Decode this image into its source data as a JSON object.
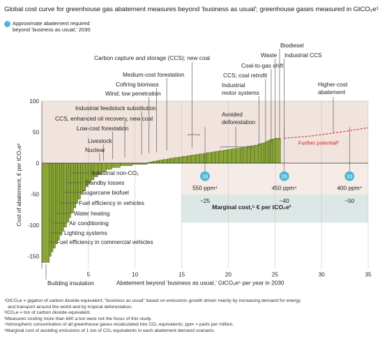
{
  "title": "Global cost curve for greenhouse gas abatement measures beyond ‘business as usual’; greenhouse gases measured in GtCO₂e¹",
  "legend": {
    "marker_label_1": "Approximate abatement required",
    "marker_label_2": "beyond ‘business as usual,’ 2030",
    "marker_color": "#4fb6d6"
  },
  "colors": {
    "bar_fill": "#8aa638",
    "bar_stroke": "#3f4f13",
    "dashed_curve": "#d01f1f",
    "upper_band": "#f1e3dd",
    "mid_band": "#dde7e6",
    "marker": "#4fb6d6"
  },
  "chart_data": {
    "type": "bar",
    "subtype": "marginal-cost-curve",
    "xlabel": "Abatement beyond ‘business as usual,’ GtCO₂e⁵ per year in 2030",
    "ylabel": "Cost of abatement, € per tCO₂e²",
    "xlim": [
      0,
      35
    ],
    "ylim": [
      -170,
      100
    ],
    "x_ticks": [
      0,
      5,
      10,
      15,
      20,
      25,
      30,
      35
    ],
    "y_ticks": [
      -150,
      -100,
      -50,
      0,
      50,
      100
    ],
    "bars": [
      {
        "width": 0.8,
        "cost": -160
      },
      {
        "width": 0.2,
        "cost": -150
      },
      {
        "width": 0.2,
        "cost": -143
      },
      {
        "width": 0.25,
        "cost": -137
      },
      {
        "width": 0.2,
        "cost": -130
      },
      {
        "width": 0.25,
        "cost": -123
      },
      {
        "width": 0.25,
        "cost": -116
      },
      {
        "width": 0.2,
        "cost": -110
      },
      {
        "width": 0.3,
        "cost": -103
      },
      {
        "width": 0.25,
        "cost": -95
      },
      {
        "width": 0.2,
        "cost": -88
      },
      {
        "width": 0.3,
        "cost": -80
      },
      {
        "width": 0.25,
        "cost": -72
      },
      {
        "width": 0.2,
        "cost": -65
      },
      {
        "width": 0.3,
        "cost": -58
      },
      {
        "width": 0.25,
        "cost": -50
      },
      {
        "width": 0.3,
        "cost": -44
      },
      {
        "width": 0.25,
        "cost": -38
      },
      {
        "width": 0.3,
        "cost": -32
      },
      {
        "width": 0.35,
        "cost": -27
      },
      {
        "width": 0.4,
        "cost": -22
      },
      {
        "width": 0.4,
        "cost": -18
      },
      {
        "width": 0.5,
        "cost": -14
      },
      {
        "width": 0.6,
        "cost": -10
      },
      {
        "width": 0.9,
        "cost": -7
      },
      {
        "width": 1.3,
        "cost": -4
      },
      {
        "width": 1.6,
        "cost": -2
      },
      {
        "width": 0.3,
        "cost": 1
      },
      {
        "width": 0.3,
        "cost": 2
      },
      {
        "width": 0.4,
        "cost": 3
      },
      {
        "width": 0.3,
        "cost": 4
      },
      {
        "width": 0.4,
        "cost": 5
      },
      {
        "width": 0.5,
        "cost": 6
      },
      {
        "width": 0.3,
        "cost": 7
      },
      {
        "width": 0.4,
        "cost": 8
      },
      {
        "width": 0.5,
        "cost": 9
      },
      {
        "width": 0.4,
        "cost": 10
      },
      {
        "width": 0.5,
        "cost": 11
      },
      {
        "width": 0.4,
        "cost": 12
      },
      {
        "width": 0.5,
        "cost": 13
      },
      {
        "width": 0.4,
        "cost": 14
      },
      {
        "width": 0.5,
        "cost": 15
      },
      {
        "width": 0.3,
        "cost": 16
      },
      {
        "width": 0.5,
        "cost": 17
      },
      {
        "width": 0.4,
        "cost": 18
      },
      {
        "width": 0.4,
        "cost": 19
      },
      {
        "width": 0.5,
        "cost": 20
      },
      {
        "width": 0.4,
        "cost": 21
      },
      {
        "width": 0.5,
        "cost": 22
      },
      {
        "width": 0.4,
        "cost": 23
      },
      {
        "width": 0.5,
        "cost": 24
      },
      {
        "width": 0.3,
        "cost": 25
      },
      {
        "width": 0.4,
        "cost": 26
      },
      {
        "width": 0.4,
        "cost": 27
      },
      {
        "width": 0.4,
        "cost": 28
      },
      {
        "width": 0.4,
        "cost": 29
      },
      {
        "width": 0.3,
        "cost": 31
      },
      {
        "width": 0.3,
        "cost": 32
      },
      {
        "width": 0.2,
        "cost": 33
      },
      {
        "width": 0.3,
        "cost": 35
      },
      {
        "width": 0.2,
        "cost": 37
      },
      {
        "width": 0.2,
        "cost": 38
      },
      {
        "width": 0.3,
        "cost": 39
      },
      {
        "width": 0.6,
        "cost": 40
      }
    ],
    "further_potential": {
      "label": "Further potential³",
      "x": [
        26,
        29,
        32,
        35
      ],
      "y": [
        40,
        44,
        50,
        57
      ]
    },
    "scenarios": [
      {
        "marker": "18",
        "x": 17.5,
        "ppm": "550 ppm⁴",
        "cost": "~25"
      },
      {
        "marker": "26",
        "x": 26,
        "ppm": "450 ppm⁴",
        "cost": "~40"
      },
      {
        "marker": "33",
        "x": 33,
        "ppm": "400 ppm⁴",
        "cost": "~50"
      }
    ],
    "marginal_cost_label": "Marginal cost,⁵ € per tCO₂e²",
    "annotations": {
      "building_insulation": "Building insulation",
      "fuel_eff_commercial": "Fuel efficiency in commercial vehicles",
      "lighting": "Lighting systems",
      "air_conditioning": "Air conditioning",
      "water_heating": "Water heating",
      "fuel_eff_vehicles": "Fuel efficiency in vehicles",
      "sugarcane": "Sugarcane biofuel",
      "standby": "Standby losses",
      "industrial_nonco2": "Industrial non-CO₂",
      "nuclear": "Nuclear",
      "livestock": "Livestock",
      "low_cost_forestation": "Low-cost forestation",
      "ccs_eor": "CCS, enhanced oil recovery, new coal",
      "feedstock": "Industrial feedstock substitution",
      "wind_low": "Wind; low penetration",
      "cofiring": "Cofiring biomass",
      "medium_forestation": "Medium-cost forestation",
      "ccs_new_coal": "Carbon capture and storage (CCS); new coal",
      "avoided_deforestation_1": "Avoided",
      "avoided_deforestation_2": "deforestation",
      "motor_1": "Industrial",
      "motor_2": "motor systems",
      "ccs_retrofit": "CCS; coal retrofit",
      "coal_to_gas": "Coal-to-gas shift",
      "waste": "Waste",
      "biodiesel": "Biodiesel",
      "industrial_ccs": "Industrial CCS",
      "higher_cost_1": "Higher-cost",
      "higher_cost_2": "abatement"
    }
  },
  "footnotes": [
    "¹GtCO₂e = gigaton of carbon dioxide equivalent; “business as usual” based on emissions growth driven mainly by increasing demand for energy",
    "and transport around the world and by tropical deforestation.",
    "²tCO₂e = ton of carbon dioxide equivalent.",
    "³Measures costing more than €40 a ton were not the focus of this study.",
    "⁴Atmospheric concentration of all greenhouse gases recalculated into CO₂ equivalents; ppm = parts per million.",
    "⁵Marginal cost of avoiding emissions of 1 ton of CO₂ equivalents in each abatement demand scenario."
  ]
}
